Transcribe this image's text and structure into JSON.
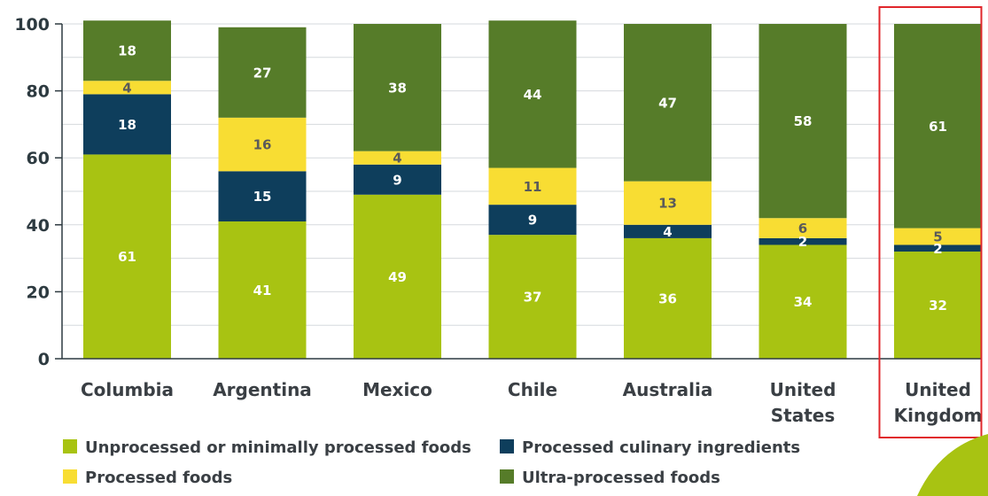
{
  "chart_data": {
    "type": "bar",
    "stacked": true,
    "title": "",
    "xlabel": "",
    "ylabel": "",
    "ylim": [
      0,
      100
    ],
    "yticks": [
      0,
      20,
      40,
      60,
      80,
      100
    ],
    "grid": true,
    "legend_position": "bottom",
    "categories": [
      [
        "Columbia"
      ],
      [
        "Argentina"
      ],
      [
        "Mexico"
      ],
      [
        "Chile"
      ],
      [
        "Australia"
      ],
      [
        "United",
        "States"
      ],
      [
        "United",
        "Kingdom"
      ]
    ],
    "highlighted_category": 6,
    "highlight_color": "#e0262b",
    "series": [
      {
        "name": "Unprocessed or minimally processed foods",
        "color": "#a8c312",
        "label_color": "#ffffff",
        "values": [
          61,
          41,
          49,
          37,
          36,
          34,
          32
        ]
      },
      {
        "name": "Processed culinary ingredients",
        "color": "#0e3e5c",
        "label_color": "#ffffff",
        "values": [
          18,
          15,
          9,
          9,
          4,
          2,
          2
        ]
      },
      {
        "name": "Processed foods",
        "color": "#f8dd33",
        "label_color": "#5a5a5a",
        "values": [
          4,
          16,
          4,
          11,
          13,
          6,
          5
        ]
      },
      {
        "name": "Ultra-processed foods",
        "color": "#567c29",
        "label_color": "#ffffff",
        "values": [
          18,
          27,
          38,
          44,
          47,
          58,
          61
        ]
      }
    ]
  }
}
